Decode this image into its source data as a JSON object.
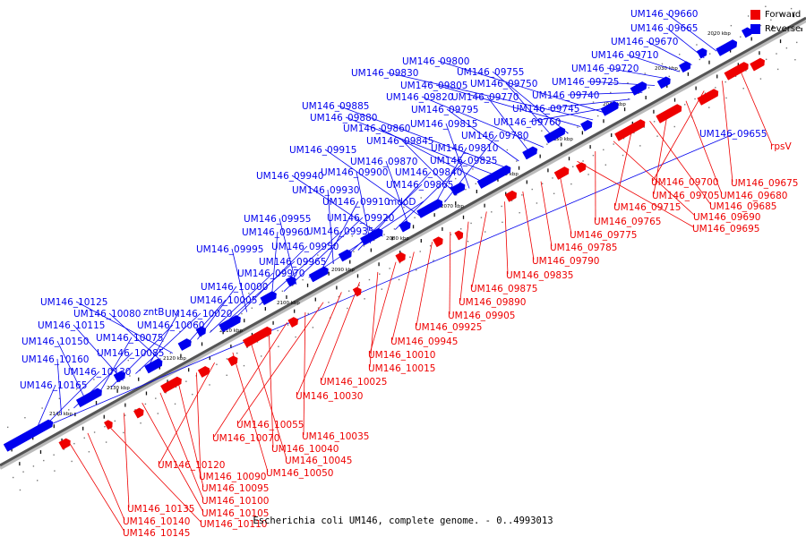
{
  "caption": "Escherichia coli UM146, complete genome. - 0..4993013",
  "legend": [
    {
      "label": "Forward",
      "color": "#ee0000"
    },
    {
      "label": "Reverse",
      "color": "#0000ee"
    }
  ],
  "colors": {
    "forward": "#ee0000",
    "reverse": "#0000ee",
    "backbone": "#555555",
    "ticks": "#000000"
  },
  "ticks": [
    "2020 kbp",
    "2030 kbp",
    "2040 kbp",
    "2050 kbp",
    "2060 kbp",
    "2070 kbp",
    "2080 kbp",
    "2090 kbp",
    "2100 kbp",
    "2110 kbp",
    "2120 kbp",
    "2130 kbp",
    "2140 kbp"
  ],
  "reverse_labels": [
    "UM146_09660",
    "UM146_09665",
    "UM146_09670",
    "UM146_09710",
    "UM146_09720",
    "UM146_09725",
    "UM146_09740",
    "UM146_09745",
    "UM146_09760",
    "UM146_09800",
    "UM146_09830",
    "UM146_09805",
    "UM146_09755",
    "UM146_09750",
    "UM146_09820",
    "UM146_09770",
    "UM146_09795",
    "UM146_09885",
    "UM146_09880",
    "UM146_09860",
    "UM146_09815",
    "UM146_09845",
    "UM146_09780",
    "UM146_09810",
    "UM146_09915",
    "UM146_09870",
    "UM146_09825",
    "UM146_09940",
    "UM146_09900",
    "UM146_09840",
    "UM146_09865",
    "UM146_09930",
    "UM146_09910",
    "mdoD",
    "UM146_09955",
    "UM146_09920",
    "UM146_09960",
    "UM146_09935",
    "UM146_09995",
    "UM146_09950",
    "UM146_09965",
    "UM146_09970",
    "UM146_10000",
    "UM146_10005",
    "UM146_10125",
    "UM146_10080",
    "zntB",
    "UM146_10020",
    "UM146_10115",
    "UM146_10060",
    "UM146_10075",
    "UM146_10150",
    "UM146_10085",
    "UM146_10160",
    "UM146_10130",
    "UM146_10165",
    "UM146_09655"
  ],
  "forward_labels": [
    "rpsV",
    "UM146_09675",
    "UM146_09700",
    "UM146_09680",
    "UM146_09705",
    "UM146_09685",
    "UM146_09715",
    "UM146_09690",
    "UM146_09765",
    "UM146_09695",
    "UM146_09775",
    "UM146_09785",
    "UM146_09790",
    "UM146_09835",
    "UM146_09875",
    "UM146_09890",
    "UM146_09905",
    "UM146_09925",
    "UM146_09945",
    "UM146_10010",
    "UM146_10015",
    "UM146_10025",
    "UM146_10030",
    "UM146_10055",
    "UM146_10035",
    "UM146_10070",
    "UM146_10040",
    "UM146_10045",
    "UM146_10050",
    "UM146_10120",
    "UM146_10090",
    "UM146_10095",
    "UM146_10100",
    "UM146_10105",
    "UM146_10135",
    "UM146_10110",
    "UM146_10140",
    "UM146_10145"
  ]
}
